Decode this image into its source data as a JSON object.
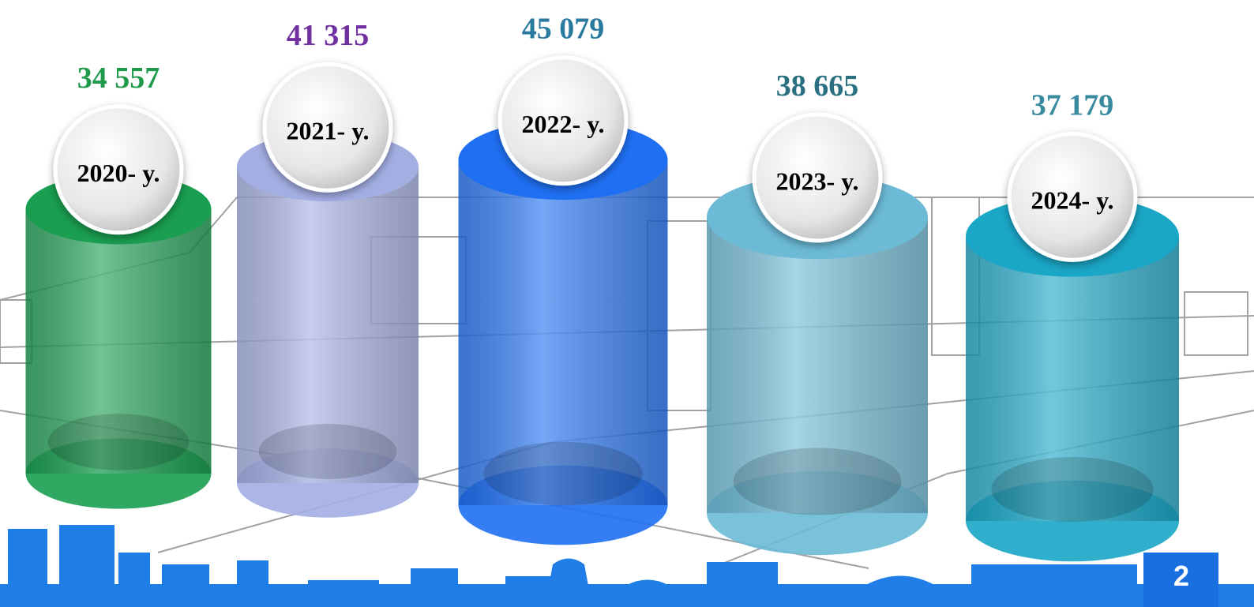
{
  "chart_data": {
    "type": "bar",
    "categories": [
      "2020- y.",
      "2021- y.",
      "2022- y.",
      "2023- y.",
      "2024- y."
    ],
    "values": [
      34557,
      41315,
      45079,
      38665,
      37179
    ],
    "value_labels": [
      "34 557",
      "41 315",
      "45 079",
      "38 665",
      "37 179"
    ],
    "colors": [
      "#1a9e50",
      "#a3aee3",
      "#1f6ff2",
      "#6cbad6",
      "#1aa6c6"
    ],
    "label_colors": [
      "#1f9a4a",
      "#7030a0",
      "#2a7aa0",
      "#2a7080",
      "#3a8aa0"
    ]
  },
  "page_number": "2"
}
